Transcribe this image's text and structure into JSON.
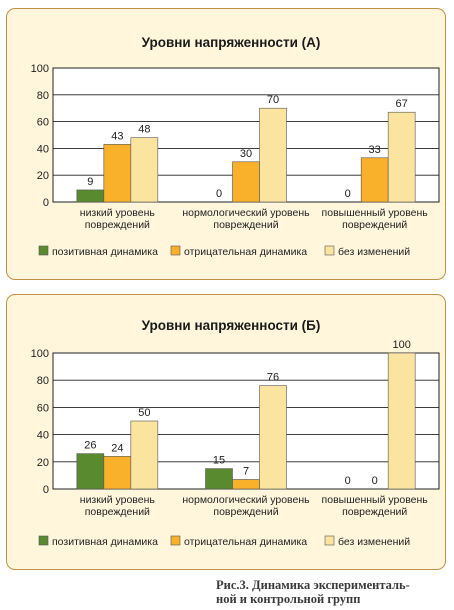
{
  "chart_data": [
    {
      "type": "bar",
      "title": "Уровни напряженности (А)",
      "categories": [
        [
          "низкий уровень",
          "повреждений"
        ],
        [
          "нормологический уровень",
          "повреждений"
        ],
        [
          "повышенный уровень",
          "повреждений"
        ]
      ],
      "series": [
        {
          "name": "позитивная динамика",
          "values": [
            9,
            0,
            0
          ]
        },
        {
          "name": "отрицательная динамика",
          "values": [
            43,
            30,
            33
          ]
        },
        {
          "name": "без изменений",
          "values": [
            48,
            70,
            67
          ]
        }
      ],
      "data_labels": [
        [
          "9",
          "0",
          "0"
        ],
        [
          "43",
          "30",
          "33"
        ],
        [
          "48",
          "70",
          "67"
        ]
      ],
      "yticks": [
        "0",
        "20",
        "40",
        "60",
        "80",
        "100"
      ],
      "ylim": [
        0,
        100
      ],
      "grid": true,
      "legend": "bottom"
    },
    {
      "type": "bar",
      "title": "Уровни напряженности (Б)",
      "categories": [
        [
          "низкий уровень",
          "повреждений"
        ],
        [
          "нормологический уровень",
          "повреждений"
        ],
        [
          "повышенный уровень",
          "повреждений"
        ]
      ],
      "series": [
        {
          "name": "позитивная динамика",
          "values": [
            26,
            15,
            0
          ]
        },
        {
          "name": "отрицательная динамика",
          "values": [
            24,
            7,
            0
          ]
        },
        {
          "name": "без изменений",
          "values": [
            50,
            76,
            100
          ]
        }
      ],
      "data_labels": [
        [
          "26",
          "15",
          "0"
        ],
        [
          "24",
          "7",
          "0"
        ],
        [
          "50",
          "76",
          "100"
        ]
      ],
      "yticks": [
        "0",
        "20",
        "40",
        "60",
        "80",
        "100"
      ],
      "ylim": [
        0,
        100
      ],
      "grid": true,
      "legend": "bottom"
    }
  ],
  "colors": {
    "series": [
      "#5a8a30",
      "#f9b02a",
      "#fbe4a0"
    ],
    "plot_background": "#ffffff",
    "panel_background": "#fff6dc",
    "panel_border": "#c58f45"
  },
  "caption": {
    "line1": "Рис.3. Динамика эксперименталь-",
    "line2": "ной и контрольной групп"
  }
}
